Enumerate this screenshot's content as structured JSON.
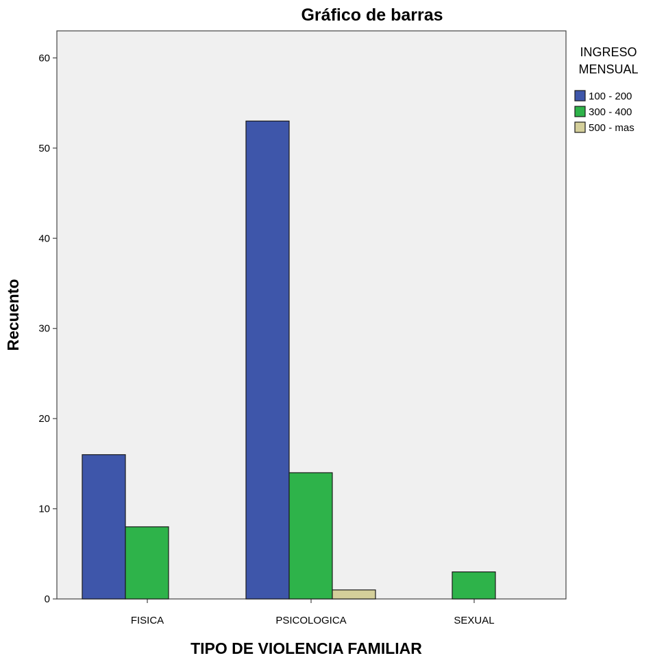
{
  "chart_data": {
    "type": "bar",
    "title": "Gráfico de barras",
    "xlabel": "TIPO DE VIOLENCIA FAMILIAR",
    "ylabel": "Recuento",
    "categories": [
      "FISICA",
      "PSICOLOGICA",
      "SEXUAL"
    ],
    "series": [
      {
        "name": "100 - 200",
        "color": "#3E56AA",
        "values": [
          16,
          53,
          0
        ]
      },
      {
        "name": "300 - 400",
        "color": "#2EB34A",
        "values": [
          8,
          14,
          3
        ]
      },
      {
        "name": "500 - mas",
        "color": "#D4CF9A",
        "values": [
          0,
          1,
          0
        ]
      }
    ],
    "ylim": [
      0,
      63
    ],
    "yticks": [
      0,
      10,
      20,
      30,
      40,
      50,
      60
    ],
    "legend": {
      "title_lines": [
        "INGRESO",
        "MENSUAL"
      ],
      "placement": "right"
    },
    "grid": false,
    "plot_background": "#F0F0F0"
  }
}
